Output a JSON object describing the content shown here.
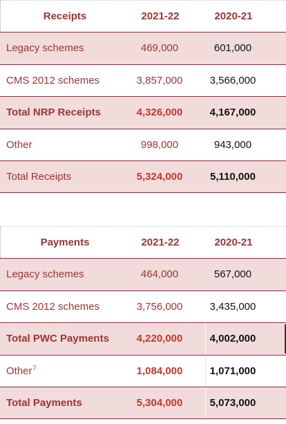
{
  "receipts_table": {
    "header": {
      "label": "Receipts",
      "year1": "2021-22",
      "year2": "2020-21"
    },
    "rows": [
      {
        "label": "Legacy schemes",
        "year1": "469,000",
        "year2": "601,000"
      },
      {
        "label": "CMS 2012 schemes",
        "year1": "3,857,000",
        "year2": "3,566,000"
      },
      {
        "label": "Total NRP Receipts",
        "year1": "4,326,000",
        "year2": "4,167,000"
      },
      {
        "label": "Other",
        "year1": "998,000",
        "year2": "943,000"
      },
      {
        "label": "Total Receipts",
        "year1": "5,324,000",
        "year2": "5,110,000"
      }
    ]
  },
  "payments_table": {
    "header": {
      "label": "Payments",
      "year1": "2021-22",
      "year2": "2020-21"
    },
    "rows": [
      {
        "label": "Legacy schemes",
        "year1": "464,000",
        "year2": "567,000"
      },
      {
        "label": "CMS 2012 schemes",
        "year1": "3,756,000",
        "year2": "3,435,000"
      },
      {
        "label": "Total PWC Payments",
        "year1": "4,220,000",
        "year2": "4,002,000"
      },
      {
        "label": "Other",
        "footnote": "7",
        "year1": "1,084,000",
        "year2": "1,071,000"
      },
      {
        "label": "Total Payments",
        "year1": "5,304,000",
        "year2": "5,073,000"
      }
    ]
  },
  "colors": {
    "shade": "#f2dcdb",
    "label_text": "#9b3535",
    "bold_value": "#c0392b",
    "rule": "#8a2a3c"
  }
}
